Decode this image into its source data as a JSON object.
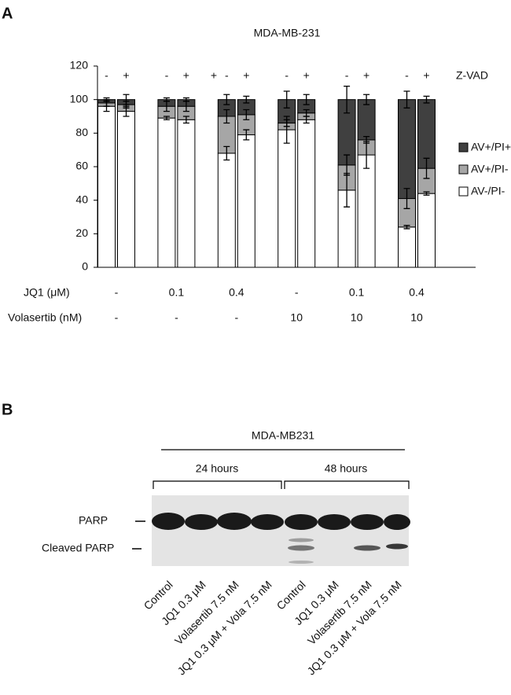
{
  "panel_a_label": "A",
  "chart_data": {
    "type": "stacked_bar",
    "title": "MDA-MB-231",
    "categories": [
      "-",
      "+",
      "-",
      "+",
      "-",
      "+",
      "-",
      "+",
      "-",
      "+",
      "-",
      "+"
    ],
    "category_row_label": "Z-VAD",
    "annotations": [
      "+"
    ],
    "ylim": [
      0,
      120
    ],
    "yticks": [
      0,
      20,
      40,
      60,
      80,
      100,
      120
    ],
    "grid": false,
    "series": [
      {
        "name": "AV-/PI-",
        "color": "#ffffff",
        "values": [
          96,
          93,
          89,
          88,
          68,
          79,
          82,
          88,
          46,
          67,
          24,
          44
        ],
        "errors": [
          3,
          3,
          1,
          2,
          4,
          3,
          8,
          2,
          10,
          8,
          1,
          1
        ]
      },
      {
        "name": "AV+/PI-",
        "color": "#a6a6a6",
        "values": [
          2,
          4,
          7,
          8,
          22,
          12,
          4,
          4,
          15,
          9,
          17,
          15
        ],
        "errors": [
          2,
          2,
          3,
          3,
          4,
          3,
          2,
          2,
          6,
          2,
          6,
          6
        ]
      },
      {
        "name": "AV+/PI+",
        "color": "#404040",
        "values": [
          2,
          3,
          4,
          4,
          10,
          9,
          14,
          8,
          39,
          24,
          59,
          41
        ],
        "errors": [
          1,
          3,
          1,
          1,
          3,
          2,
          5,
          3,
          8,
          3,
          5,
          2
        ]
      }
    ],
    "groups": [
      {
        "label": "JQ1 (μM)",
        "values": [
          "-",
          "0.1",
          "0.4",
          "-",
          "0.1",
          "0.4"
        ]
      },
      {
        "label": "Volasertib (nM)",
        "values": [
          "-",
          "-",
          "-",
          "10",
          "10",
          "10"
        ]
      }
    ],
    "legend": "right"
  },
  "panel_b_label": "B",
  "blot": {
    "title": "MDA-MB231",
    "timepoints": [
      "24 hours",
      "48 hours"
    ],
    "bands": [
      "PARP",
      "Cleaved PARP"
    ],
    "lanes": [
      "Control",
      "JQ1 0.3 μM",
      "Volasertib 7.5 nM",
      "JQ1 0.3 μM + Vola 7.5 nM",
      "Control",
      "JQ1 0.3 μM",
      "Volasertib 7.5 nM",
      "JQ1 0.3 μM + Vola 7.5 nM"
    ]
  }
}
